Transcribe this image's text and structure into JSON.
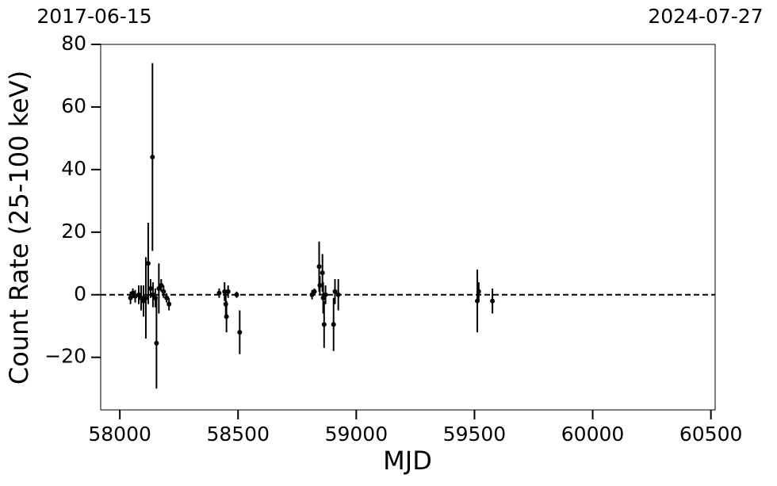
{
  "chart_data": {
    "type": "errorbar",
    "top_labels": [
      "2017-06-15",
      "2024-07-27"
    ],
    "xlabel": "MJD",
    "ylabel": "Count Rate (25-100 keV)",
    "xlim": [
      57919,
      60518
    ],
    "ylim": [
      -36.8,
      80
    ],
    "xticks": [
      58000,
      58500,
      59000,
      59500,
      60000,
      60500
    ],
    "yticks": [
      {
        "value": -20,
        "label": "−20"
      },
      0,
      20,
      40,
      60,
      80
    ],
    "reference_line": 0,
    "color": "#000000",
    "series": [
      {
        "x": [
          58045,
          58055,
          58065,
          58080,
          58090,
          58100,
          58110,
          58120,
          58130,
          58140,
          58138,
          58150,
          58155,
          58165,
          58175,
          58185,
          58198,
          58208,
          58420,
          58443,
          58448,
          58451,
          58458,
          58494,
          58507,
          58813,
          58823,
          58843,
          58846,
          58857,
          58860,
          58864,
          58870,
          58904,
          58910,
          58924,
          59512,
          59518,
          59576
        ],
        "values": [
          -1,
          0.5,
          -0.5,
          0,
          -1,
          -2,
          -1,
          10,
          2,
          0,
          44,
          -1,
          -15.5,
          2,
          3,
          1,
          -1,
          -3,
          0.5,
          1,
          -3,
          -7,
          1,
          0,
          -12,
          0,
          1,
          9,
          3,
          7,
          -1,
          -9.5,
          0,
          -9.5,
          1,
          0,
          -2,
          1,
          -2
        ],
        "errors": [
          2,
          1.5,
          2,
          3,
          4,
          5,
          13,
          13,
          3,
          4,
          30,
          3,
          14.5,
          8,
          2,
          2,
          1.5,
          2,
          1.5,
          3,
          4,
          5,
          2,
          1,
          7,
          1.5,
          1,
          8,
          3,
          6,
          5,
          7.5,
          3,
          8.5,
          4,
          5,
          10,
          3,
          4
        ]
      }
    ]
  }
}
